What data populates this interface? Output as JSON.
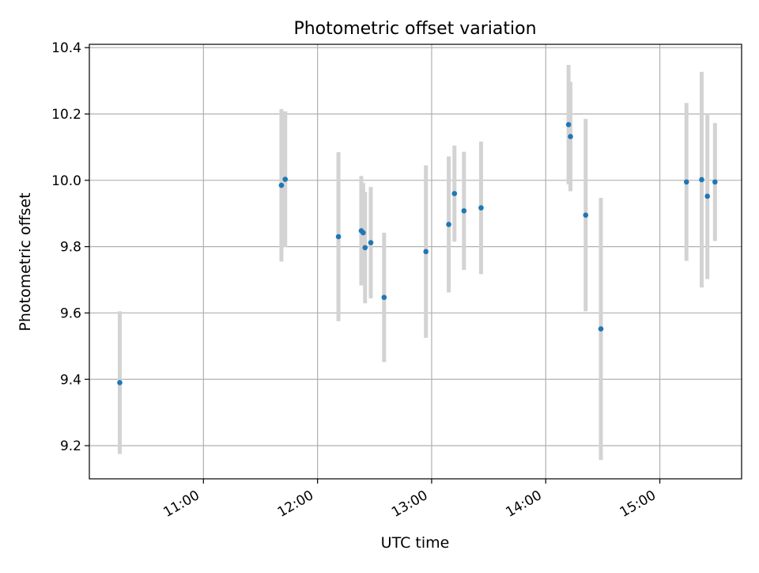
{
  "chart_data": {
    "type": "scatter",
    "title": "Photometric offset variation",
    "xlabel": "UTC time",
    "ylabel": "Photometric offset",
    "x_axis_kind": "time",
    "xlim": [
      "10:00",
      "15:43"
    ],
    "ylim": [
      9.1,
      10.41
    ],
    "grid": true,
    "x_ticks": [
      "11:00",
      "12:00",
      "13:00",
      "14:00",
      "15:00"
    ],
    "y_ticks": [
      "9.2",
      "9.4",
      "9.6",
      "9.8",
      "10.0",
      "10.2",
      "10.4"
    ],
    "point_color": "#1f77b4",
    "errorbar_color": "#d3d3d3",
    "points": [
      {
        "x": "10:16",
        "y": 9.39,
        "yerr": 0.215
      },
      {
        "x": "11:41",
        "y": 9.985,
        "yerr": 0.23
      },
      {
        "x": "11:43",
        "y": 10.003,
        "yerr": 0.205
      },
      {
        "x": "12:11",
        "y": 9.83,
        "yerr": 0.255
      },
      {
        "x": "12:23",
        "y": 9.848,
        "yerr": 0.165
      },
      {
        "x": "12:24",
        "y": 9.842,
        "yerr": 0.15
      },
      {
        "x": "12:25",
        "y": 9.797,
        "yerr": 0.168
      },
      {
        "x": "12:28",
        "y": 9.812,
        "yerr": 0.168
      },
      {
        "x": "12:35",
        "y": 9.647,
        "yerr": 0.195
      },
      {
        "x": "12:57",
        "y": 9.785,
        "yerr": 0.26
      },
      {
        "x": "13:09",
        "y": 9.867,
        "yerr": 0.205
      },
      {
        "x": "13:12",
        "y": 9.96,
        "yerr": 0.145
      },
      {
        "x": "13:17",
        "y": 9.908,
        "yerr": 0.178
      },
      {
        "x": "13:26",
        "y": 9.917,
        "yerr": 0.2
      },
      {
        "x": "14:12",
        "y": 10.168,
        "yerr": 0.18
      },
      {
        "x": "14:13",
        "y": 10.132,
        "yerr": 0.165
      },
      {
        "x": "14:21",
        "y": 9.895,
        "yerr": 0.29
      },
      {
        "x": "14:29",
        "y": 9.552,
        "yerr": 0.395
      },
      {
        "x": "15:14",
        "y": 9.995,
        "yerr": 0.238
      },
      {
        "x": "15:22",
        "y": 10.002,
        "yerr": 0.325
      },
      {
        "x": "15:25",
        "y": 9.952,
        "yerr": 0.25
      },
      {
        "x": "15:29",
        "y": 9.995,
        "yerr": 0.178
      }
    ]
  }
}
